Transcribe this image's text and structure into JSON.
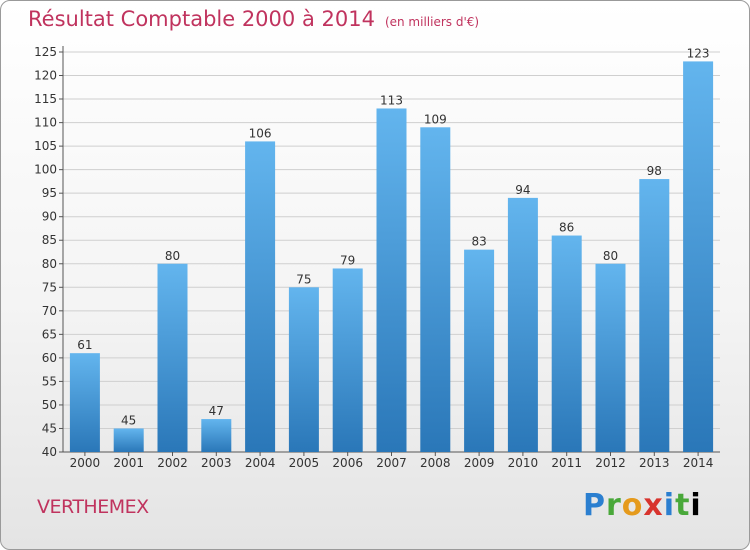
{
  "header": {
    "title": "Résultat Comptable 2000 à 2014",
    "unit": "(en milliers d'€)"
  },
  "footer": {
    "commune": "VERTHEMEX",
    "logo_text": "Proxiti"
  },
  "colors": {
    "title": "#c0335e",
    "bar_top": "#63b5ee",
    "bar_bottom": "#2a77b8",
    "grid": "#cfcfcf"
  },
  "chart_data": {
    "type": "bar",
    "title": "Résultat Comptable 2000 à 2014",
    "xlabel": "",
    "ylabel": "",
    "ylim": [
      40,
      125
    ],
    "yticks": [
      40,
      45,
      50,
      55,
      60,
      65,
      70,
      75,
      80,
      85,
      90,
      95,
      100,
      105,
      110,
      115,
      120,
      125
    ],
    "grid": true,
    "categories": [
      "2000",
      "2001",
      "2002",
      "2003",
      "2004",
      "2005",
      "2006",
      "2007",
      "2008",
      "2009",
      "2010",
      "2011",
      "2012",
      "2013",
      "2014"
    ],
    "values": [
      61,
      45,
      80,
      47,
      106,
      75,
      79,
      113,
      109,
      83,
      94,
      86,
      80,
      98,
      123
    ]
  }
}
